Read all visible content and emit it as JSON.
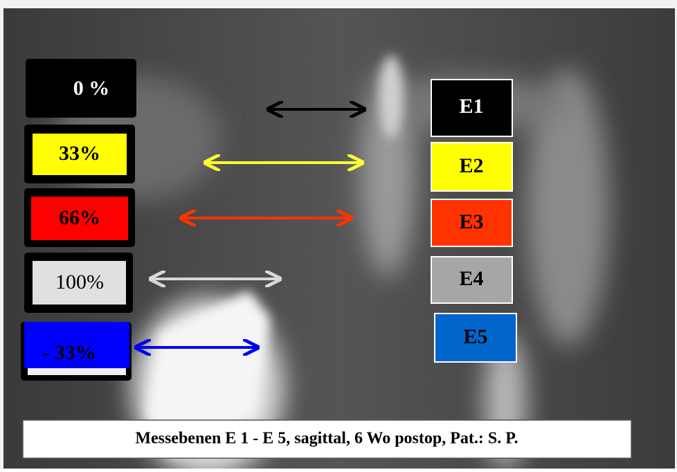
{
  "left_labels": [
    "0 %",
    "33%",
    "66%",
    "100%",
    "- 33%"
  ],
  "right_labels": [
    "E1",
    "E2",
    "E3",
    "E4",
    "E5"
  ],
  "caption": "Messebenen E 1 - E 5, sagittal, 6 Wo postop, Pat.: S. P."
}
